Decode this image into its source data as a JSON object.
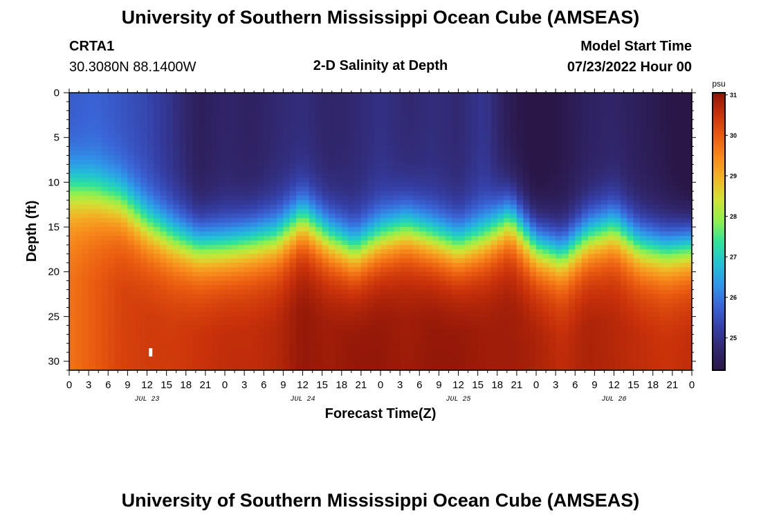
{
  "header": {
    "title": "University of Southern Mississippi Ocean Cube (AMSEAS)",
    "station": "CRTA1",
    "coords": "30.3080N  88.1400W",
    "subtitle": "2-D Salinity at Depth",
    "start_label": "Model Start Time",
    "start_date": "07/23/2022 Hour 00"
  },
  "footer": {
    "title": "University of Southern Mississippi Ocean Cube (AMSEAS)"
  },
  "chart_data": {
    "type": "heatmap",
    "title": "2-D Salinity at Depth",
    "xlabel": "Forecast Time(Z)",
    "ylabel": "Depth (ft)",
    "x_range_hours": [
      0,
      96
    ],
    "x_tick_step_hours": 3,
    "x_tick_labels": [
      "0",
      "3",
      "6",
      "9",
      "12",
      "15",
      "18",
      "21",
      "0",
      "3",
      "6",
      "9",
      "12",
      "15",
      "18",
      "21",
      "0",
      "3",
      "6",
      "9",
      "12",
      "15",
      "18",
      "21",
      "0",
      "3",
      "6",
      "9",
      "12",
      "15",
      "18",
      "21",
      "0"
    ],
    "date_labels": [
      {
        "text": "JUL 23",
        "hour": 12
      },
      {
        "text": "JUL 24",
        "hour": 36
      },
      {
        "text": "JUL 25",
        "hour": 60
      },
      {
        "text": "JUL 26",
        "hour": 84
      }
    ],
    "y_range_ft": [
      0,
      31
    ],
    "y_ticks": [
      0,
      5,
      10,
      15,
      20,
      25,
      30
    ],
    "colorbar": {
      "unit": "psu",
      "range": [
        24.2,
        31.05
      ],
      "ticks": [
        25,
        26,
        27,
        28,
        29,
        30,
        31
      ],
      "stops": [
        "#2a1748",
        "#31276e",
        "#353fa6",
        "#3a64d6",
        "#2f96e9",
        "#22c2d3",
        "#2fe29a",
        "#8ff04e",
        "#d1e235",
        "#f2b526",
        "#f7881b",
        "#ea5a10",
        "#c8310a",
        "#8e1508"
      ]
    },
    "time_hours": [
      0,
      4,
      8,
      12,
      16,
      20,
      24,
      28,
      32,
      36,
      40,
      44,
      48,
      52,
      56,
      60,
      64,
      68,
      72,
      76,
      80,
      84,
      88,
      92,
      96
    ],
    "halocline_depth_ft": [
      10.5,
      11,
      12,
      14.5,
      16,
      17,
      17,
      16.5,
      16,
      14,
      16,
      17.5,
      16,
      15,
      16,
      17,
      16,
      14,
      17,
      18,
      16,
      15,
      17,
      17.5,
      17
    ],
    "surface_salinity_psu": [
      25.9,
      26.0,
      25.8,
      25.6,
      25.2,
      24.7,
      24.9,
      24.8,
      25.0,
      25.1,
      24.9,
      25.0,
      25.2,
      25.0,
      25.1,
      25.0,
      25.3,
      24.6,
      24.3,
      24.5,
      24.8,
      24.9,
      24.7,
      24.5,
      24.2
    ],
    "bottom_salinity_psu": [
      29.6,
      29.9,
      30.2,
      30.3,
      30.3,
      30.4,
      30.5,
      30.5,
      30.6,
      30.9,
      30.8,
      30.9,
      30.9,
      30.8,
      30.9,
      30.9,
      30.8,
      30.8,
      30.7,
      30.5,
      30.7,
      30.6,
      30.5,
      30.4,
      30.5
    ],
    "marker": {
      "hour": 12.5,
      "depth_ft": 29
    }
  }
}
